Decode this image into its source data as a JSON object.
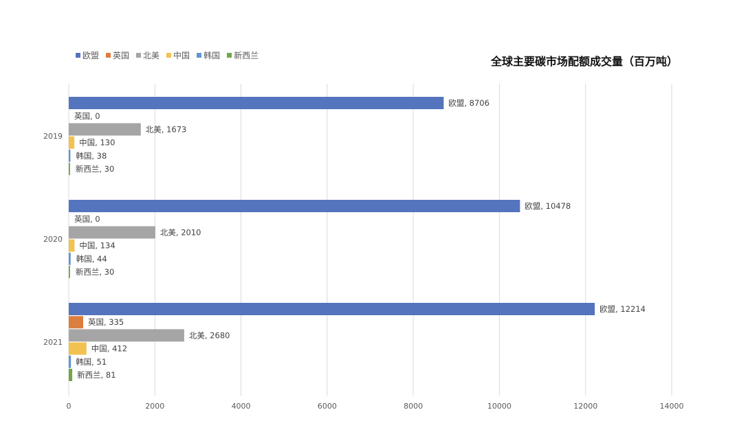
{
  "chart_data": {
    "type": "bar",
    "orientation": "horizontal",
    "title": "全球主要碳市场配额成交量（百万吨）",
    "categories": [
      "2019",
      "2020",
      "2021"
    ],
    "series": [
      {
        "name": "欧盟",
        "color": "#5474BD",
        "values": [
          8706,
          10478,
          12214
        ]
      },
      {
        "name": "英国",
        "color": "#DB7E40",
        "values": [
          0,
          0,
          335
        ]
      },
      {
        "name": "北美",
        "color": "#A5A5A5",
        "values": [
          1673,
          2010,
          2680
        ]
      },
      {
        "name": "中国",
        "color": "#F2C250",
        "values": [
          130,
          134,
          412
        ]
      },
      {
        "name": "韩国",
        "color": "#5E96D3",
        "values": [
          38,
          44,
          51
        ]
      },
      {
        "name": "新西兰",
        "color": "#72A648",
        "values": [
          30,
          30,
          81
        ]
      }
    ],
    "xlim": [
      0,
      14000
    ],
    "xticks": [
      "0",
      "2000",
      "4000",
      "6000",
      "8000",
      "10000",
      "12000",
      "14000"
    ],
    "grid": true,
    "legend": "top-left",
    "data_labels": true
  }
}
